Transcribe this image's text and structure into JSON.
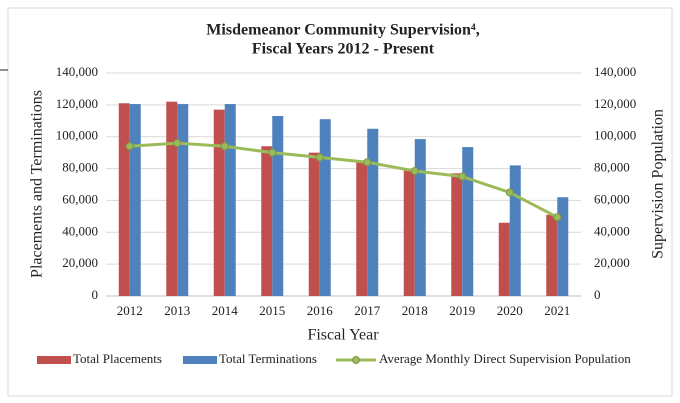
{
  "chart_data": {
    "type": "bar",
    "title": [
      "Misdemeanor Community Supervision⁴,",
      "Fiscal Years 2012 - Present"
    ],
    "x_label": "Fiscal Year",
    "y_label": "Placements and Terminations",
    "y2_label": "Supervision Population",
    "categories": [
      "2012",
      "2013",
      "2014",
      "2015",
      "2016",
      "2017",
      "2018",
      "2019",
      "2020",
      "2021"
    ],
    "series": [
      {
        "name": "Total Placements",
        "type": "bar",
        "color": "#c0504d",
        "values": [
          121000,
          122000,
          117000,
          94000,
          90000,
          85000,
          79000,
          77000,
          46000,
          51000
        ]
      },
      {
        "name": "Total Terminations",
        "type": "bar",
        "color": "#4f81bd",
        "values": [
          120500,
          120500,
          120500,
          113000,
          111000,
          105000,
          98500,
          93500,
          82000,
          62000
        ]
      },
      {
        "name": "Average Monthly Direct Supervision Population",
        "type": "line",
        "axis": "y2",
        "color": "#9bbb59",
        "values": [
          94000,
          96000,
          94000,
          90000,
          87000,
          84000,
          78500,
          75000,
          65000,
          49500
        ]
      }
    ],
    "ylim": [
      0,
      140000
    ],
    "yticks": [
      0,
      {
        "value": 20000,
        "label": "20,000"
      },
      {
        "value": 40000,
        "label": "40,000"
      },
      {
        "value": 60000,
        "label": "60,000"
      },
      {
        "value": 80000,
        "label": "80,000"
      },
      {
        "value": 100000,
        "label": "100,000"
      },
      {
        "value": 120000,
        "label": "120,000"
      },
      {
        "value": 140000,
        "label": "140,000"
      }
    ],
    "y2lim": [
      0,
      140000
    ],
    "y2ticks": [
      0,
      {
        "value": 20000,
        "label": "20,000"
      },
      {
        "value": 40000,
        "label": "40,000"
      },
      {
        "value": 60000,
        "label": "60,000"
      },
      {
        "value": 80000,
        "label": "80,000"
      },
      {
        "value": 100000,
        "label": "100,000"
      },
      {
        "value": 120000,
        "label": "120,000"
      },
      {
        "value": 140000,
        "label": "140,000"
      }
    ],
    "grid": true,
    "legend": "bottom"
  }
}
